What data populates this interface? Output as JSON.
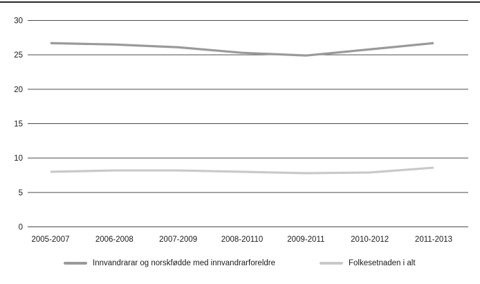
{
  "chart_data": {
    "type": "line",
    "title": "",
    "xlabel": "",
    "ylabel": "",
    "categories": [
      "2005-2007",
      "2006-2008",
      "2007-2009",
      "2008-20110",
      "2009-2011",
      "2010-2012",
      "2011-2013"
    ],
    "series": [
      {
        "name": "Innvandrarar og norskfødde med innvandrarforeldre",
        "values": [
          26.7,
          26.5,
          26.1,
          25.3,
          24.9,
          25.8,
          26.7
        ],
        "color": "#9a9a9a"
      },
      {
        "name": "Folkesetnaden i alt",
        "values": [
          8.0,
          8.2,
          8.2,
          8.0,
          7.8,
          7.9,
          8.6
        ],
        "color": "#c9c9c9"
      }
    ],
    "ylim": [
      0,
      30
    ],
    "yticks": [
      0,
      5,
      10,
      15,
      20,
      25,
      30
    ],
    "grid": true,
    "legend_position": "bottom",
    "colors": {
      "gridline": "#4a4a4a",
      "axis_text": "#1a1a1a",
      "top_border": "#262626",
      "background": "#ffffff"
    }
  }
}
